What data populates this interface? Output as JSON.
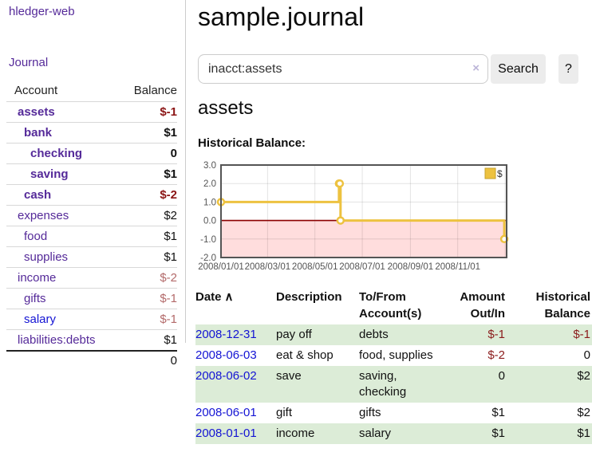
{
  "colors": {
    "link_purple": "#552a99",
    "link_blue": "#1414d4",
    "negative_strong": "#8b1515",
    "negative_soft": "#b36a6a",
    "table_negative": "#8b1c1c",
    "stripe_green": "#dcecd7",
    "chart_gold": "#edc240",
    "chart_gold_dark": "#c7a12b",
    "chart_negative_fill": "#ffdddd",
    "chart_zero_line": "#8b0000",
    "chart_border": "#545454",
    "chart_text": "#545454"
  },
  "sidebar": {
    "brand": "hledger-web",
    "journal_link": "Journal",
    "accounts_table": {
      "header_account": "Account",
      "header_balance": "Balance",
      "rows": [
        {
          "name": "assets",
          "balance": "$-1",
          "depth": 1,
          "bold": true,
          "name_color": "purple",
          "balance_color": "strong-negative"
        },
        {
          "name": "bank",
          "balance": "$1",
          "depth": 2,
          "bold": true,
          "name_color": "purple",
          "balance_color": "normal"
        },
        {
          "name": "checking",
          "balance": "0",
          "depth": 3,
          "bold": true,
          "name_color": "purple",
          "balance_color": "normal"
        },
        {
          "name": "saving",
          "balance": "$1",
          "depth": 3,
          "bold": true,
          "name_color": "purple",
          "balance_color": "normal"
        },
        {
          "name": "cash",
          "balance": "$-2",
          "depth": 2,
          "bold": true,
          "name_color": "purple",
          "balance_color": "strong-negative"
        },
        {
          "name": "expenses",
          "balance": "$2",
          "depth": 1,
          "bold": false,
          "name_color": "purple",
          "balance_color": "normal"
        },
        {
          "name": "food",
          "balance": "$1",
          "depth": 2,
          "bold": false,
          "name_color": "purple",
          "balance_color": "normal"
        },
        {
          "name": "supplies",
          "balance": "$1",
          "depth": 2,
          "bold": false,
          "name_color": "purple",
          "balance_color": "normal"
        },
        {
          "name": "income",
          "balance": "$-2",
          "depth": 1,
          "bold": false,
          "name_color": "purple",
          "balance_color": "soft-negative"
        },
        {
          "name": "gifts",
          "balance": "$-1",
          "depth": 2,
          "bold": false,
          "name_color": "purple",
          "balance_color": "soft-negative"
        },
        {
          "name": "salary",
          "balance": "$-1",
          "depth": 2,
          "bold": false,
          "name_color": "blue",
          "balance_color": "soft-negative"
        },
        {
          "name": "liabilities:debts",
          "balance": "$1",
          "depth": 1,
          "bold": false,
          "name_color": "purple",
          "balance_color": "normal"
        }
      ],
      "total": "0"
    }
  },
  "main": {
    "title": "sample.journal",
    "search": {
      "value": "inacct:assets",
      "clear_icon": "×",
      "button_label": "Search",
      "help_label": "?"
    },
    "section_heading": "assets",
    "chart_label": "Historical Balance:"
  },
  "chart_data": {
    "type": "line",
    "title": "Historical Balance",
    "step": true,
    "series": [
      {
        "name": "$",
        "points": [
          [
            "2008-01-01",
            1
          ],
          [
            "2008-06-01",
            2
          ],
          [
            "2008-06-02",
            2
          ],
          [
            "2008-06-03",
            0
          ],
          [
            "2008-12-31",
            -1
          ]
        ]
      }
    ],
    "xlim": [
      "2008-01-01",
      "2009-01-03"
    ],
    "ylim": [
      -2,
      3
    ],
    "y_ticks": [
      "3.0",
      "2.0",
      "1.0",
      "0.0",
      "-1.0",
      "-2.0"
    ],
    "y_tick_values": [
      3,
      2,
      1,
      0,
      -1,
      -2
    ],
    "y_gridlines": [
      2,
      1,
      -1
    ],
    "x_ticks": [
      "2008/01/01",
      "2008/03/01",
      "2008/05/01",
      "2008/07/01",
      "2008/09/01",
      "2008/11/01"
    ],
    "x_tick_dates": [
      "2008-01-01",
      "2008-03-01",
      "2008-05-01",
      "2008-07-01",
      "2008-09-01",
      "2008-11-01"
    ],
    "x_gridlines": [
      "2008-03-01",
      "2008-05-01",
      "2008-07-01",
      "2008-09-01",
      "2008-11-01",
      "2009-01-01"
    ],
    "legend": {
      "label": "$",
      "position": "top-right"
    },
    "zero_line": true,
    "negative_region_shaded": true
  },
  "register": {
    "headers": {
      "date": "Date",
      "sort_indicator": "∧",
      "description": "Description",
      "accounts": "To/From Account(s)",
      "amount": "Amount Out/In",
      "balance": "Historical Balance"
    },
    "rows": [
      {
        "date": "2008-12-31",
        "description": "pay off",
        "accounts": "debts",
        "amount": "$-1",
        "amount_negative": true,
        "balance": "$-1",
        "balance_negative": true,
        "stripe": true
      },
      {
        "date": "2008-06-03",
        "description": "eat & shop",
        "accounts": "food, supplies",
        "amount": "$-2",
        "amount_negative": true,
        "balance": "0",
        "balance_negative": false,
        "stripe": false
      },
      {
        "date": "2008-06-02",
        "description": "save",
        "accounts": "saving, checking",
        "amount": "0",
        "amount_negative": false,
        "balance": "$2",
        "balance_negative": false,
        "stripe": true
      },
      {
        "date": "2008-06-01",
        "description": "gift",
        "accounts": "gifts",
        "amount": "$1",
        "amount_negative": false,
        "balance": "$2",
        "balance_negative": false,
        "stripe": false
      },
      {
        "date": "2008-01-01",
        "description": "income",
        "accounts": "salary",
        "amount": "$1",
        "amount_negative": false,
        "balance": "$1",
        "balance_negative": false,
        "stripe": true
      }
    ]
  }
}
